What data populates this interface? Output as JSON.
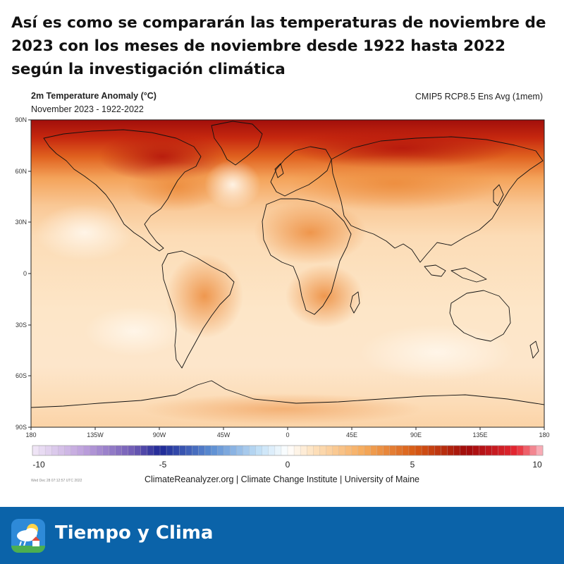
{
  "headline": "Así es como se compararán las temperaturas de noviembre de 2023 con los meses de noviembre desde 1922 hasta 2022 según la investigación climática",
  "map": {
    "title": "2m Temperature Anomaly (°C)",
    "subtitle": "November 2023 - 1922-2022",
    "model": "CMIP5 RCP8.5 Ens Avg (1mem)",
    "lat_labels": [
      "90N",
      "60N",
      "30N",
      "0",
      "30S",
      "60S",
      "90S"
    ],
    "lon_labels": [
      "180",
      "135W",
      "90W",
      "45W",
      "0",
      "45E",
      "90E",
      "135E",
      "180"
    ],
    "colorbar_labels": [
      "-10",
      "-5",
      "0",
      "5",
      "10"
    ],
    "colorbar_range": [
      -10,
      10
    ],
    "stamp": "Wed Dec 28 07:12:57 UTC 2022",
    "credit": "ClimateReanalyzer.org | Climate Change Institute | University of Maine"
  },
  "brand": {
    "name": "Tiempo y Clima",
    "icon": "weather-cloud-sun-icon",
    "bar_color": "#0b63a9"
  }
}
